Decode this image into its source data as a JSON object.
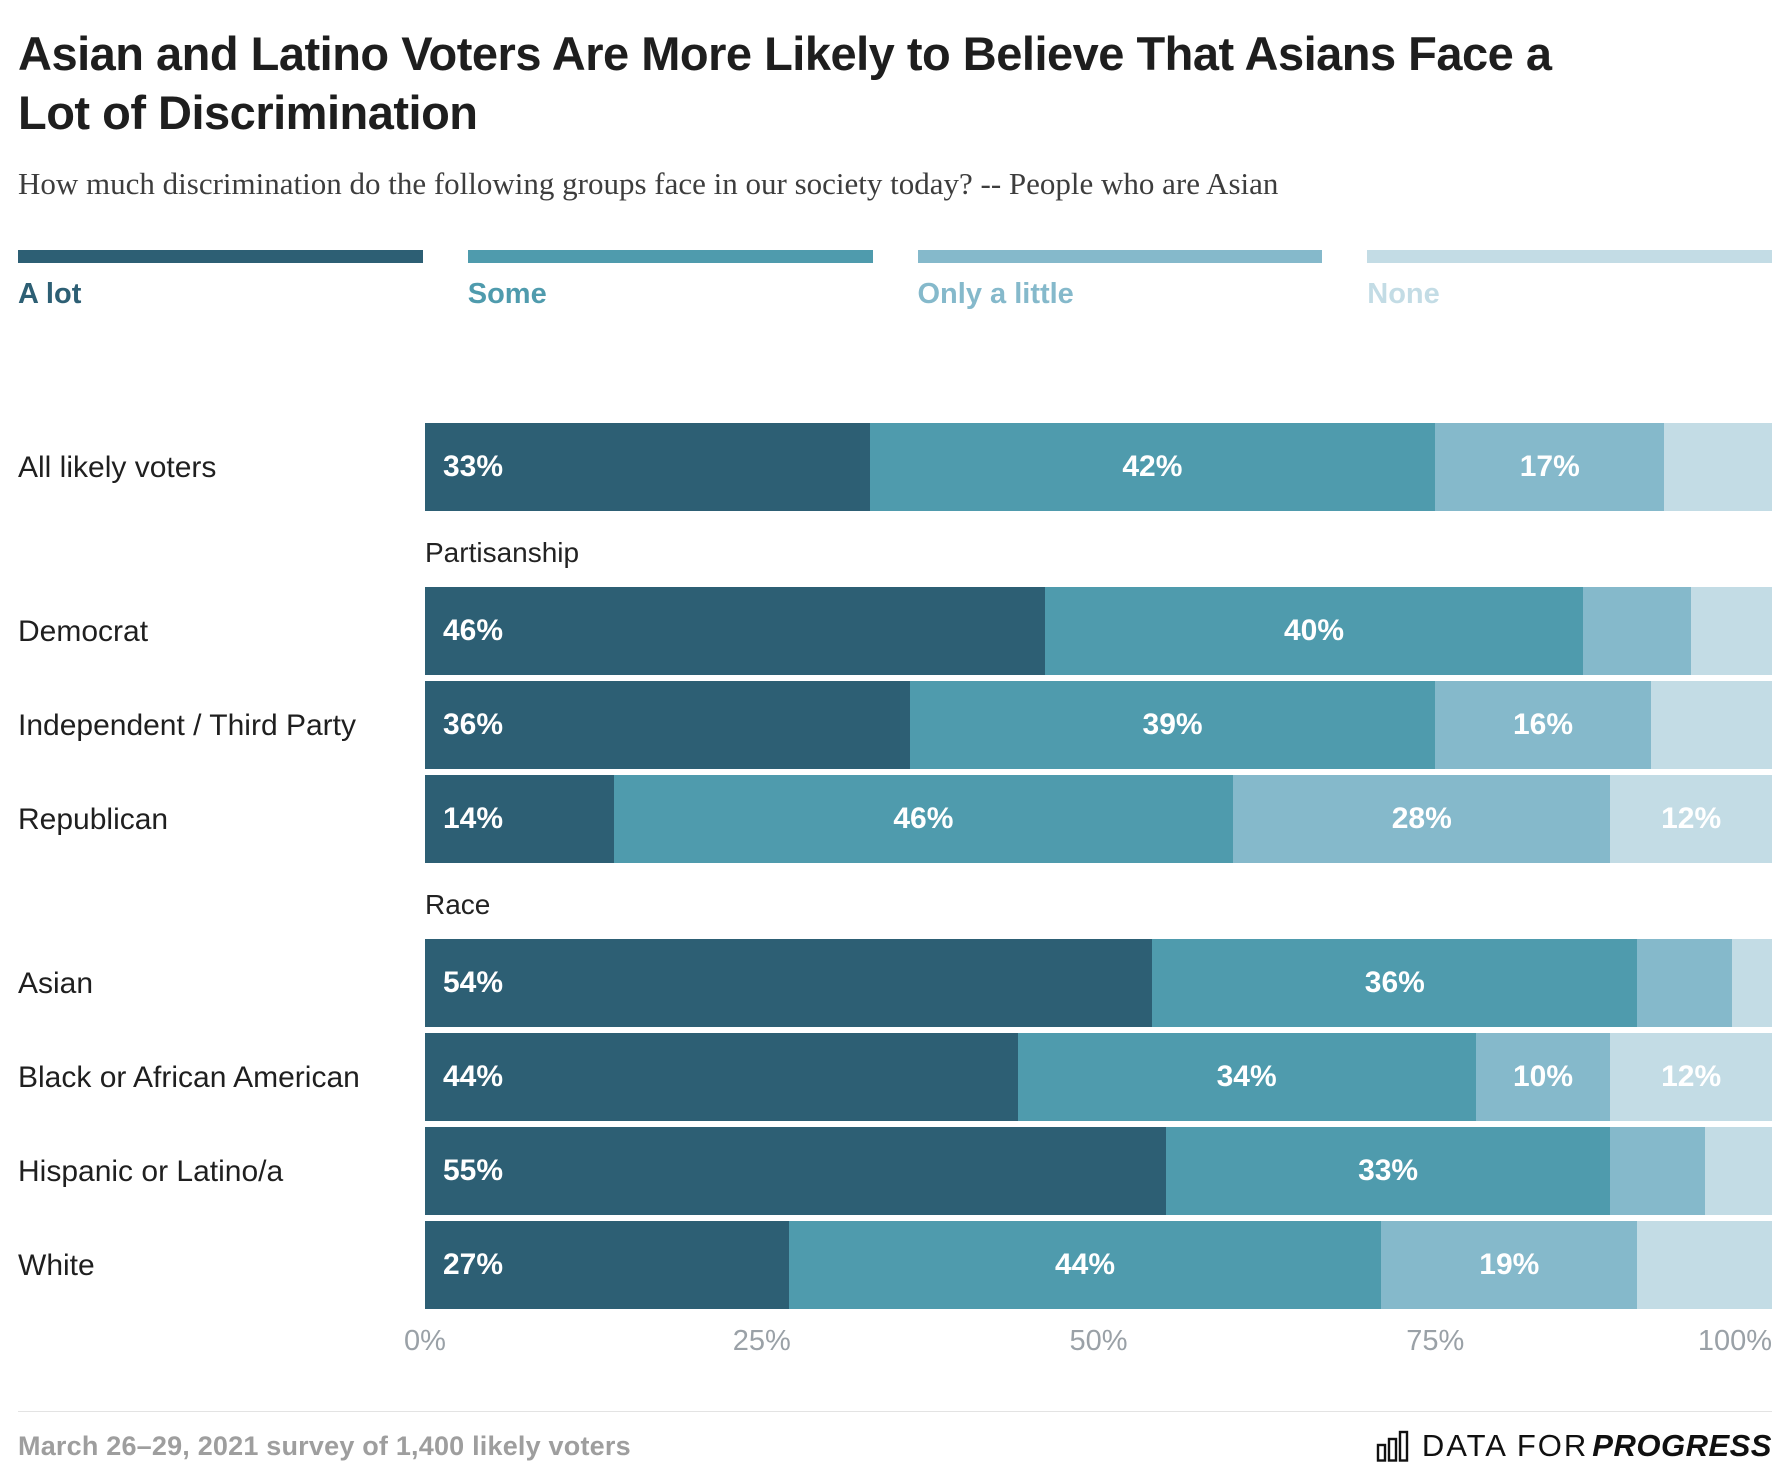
{
  "header": {
    "title": "Asian and Latino Voters Are More Likely to Believe That Asians Face a Lot of Discrimination",
    "subtitle": "How much discrimination do the following groups face in our society today? -- People who are Asian"
  },
  "legend": [
    {
      "label": "A lot",
      "color": "#2D5F74"
    },
    {
      "label": "Some",
      "color": "#4F9BAD"
    },
    {
      "label": "Only a little",
      "color": "#85B9CB"
    },
    {
      "label": "None",
      "color": "#C3DCE5"
    }
  ],
  "chart_data": {
    "type": "bar",
    "stacked": true,
    "orientation": "horizontal",
    "title": "Asian and Latino Voters Are More Likely to Believe That Asians Face a Lot of Discrimination",
    "subtitle": "How much discrimination do the following groups face in our society today? -- People who are Asian",
    "series_names": [
      "A lot",
      "Some",
      "Only a little",
      "None"
    ],
    "xlim": [
      0,
      100
    ],
    "x_ticks": [
      "0%",
      "25%",
      "50%",
      "75%",
      "100%"
    ],
    "groups": [
      {
        "section": null,
        "rows": [
          {
            "label": "All likely voters",
            "values": [
              33,
              42,
              17,
              8
            ],
            "labeled": [
              true,
              true,
              true,
              false
            ]
          }
        ]
      },
      {
        "section": "Partisanship",
        "rows": [
          {
            "label": "Democrat",
            "values": [
              46,
              40,
              8,
              6
            ],
            "labeled": [
              true,
              true,
              false,
              false
            ]
          },
          {
            "label": "Independent / Third Party",
            "values": [
              36,
              39,
              16,
              9
            ],
            "labeled": [
              true,
              true,
              true,
              false
            ]
          },
          {
            "label": "Republican",
            "values": [
              14,
              46,
              28,
              12
            ],
            "labeled": [
              true,
              true,
              true,
              true
            ]
          }
        ]
      },
      {
        "section": "Race",
        "rows": [
          {
            "label": "Asian",
            "values": [
              54,
              36,
              7,
              3
            ],
            "labeled": [
              true,
              true,
              false,
              false
            ]
          },
          {
            "label": "Black or African American",
            "values": [
              44,
              34,
              10,
              12
            ],
            "labeled": [
              true,
              true,
              true,
              true
            ]
          },
          {
            "label": "Hispanic or Latino/a",
            "values": [
              55,
              33,
              7,
              5
            ],
            "labeled": [
              true,
              true,
              false,
              false
            ]
          },
          {
            "label": "White",
            "values": [
              27,
              44,
              19,
              10
            ],
            "labeled": [
              true,
              true,
              true,
              false
            ]
          }
        ]
      }
    ]
  },
  "footer": {
    "note": "March 26–29, 2021 survey of 1,400 likely voters",
    "brand_prefix": "DATA FOR",
    "brand_suffix": "PROGRESS"
  }
}
